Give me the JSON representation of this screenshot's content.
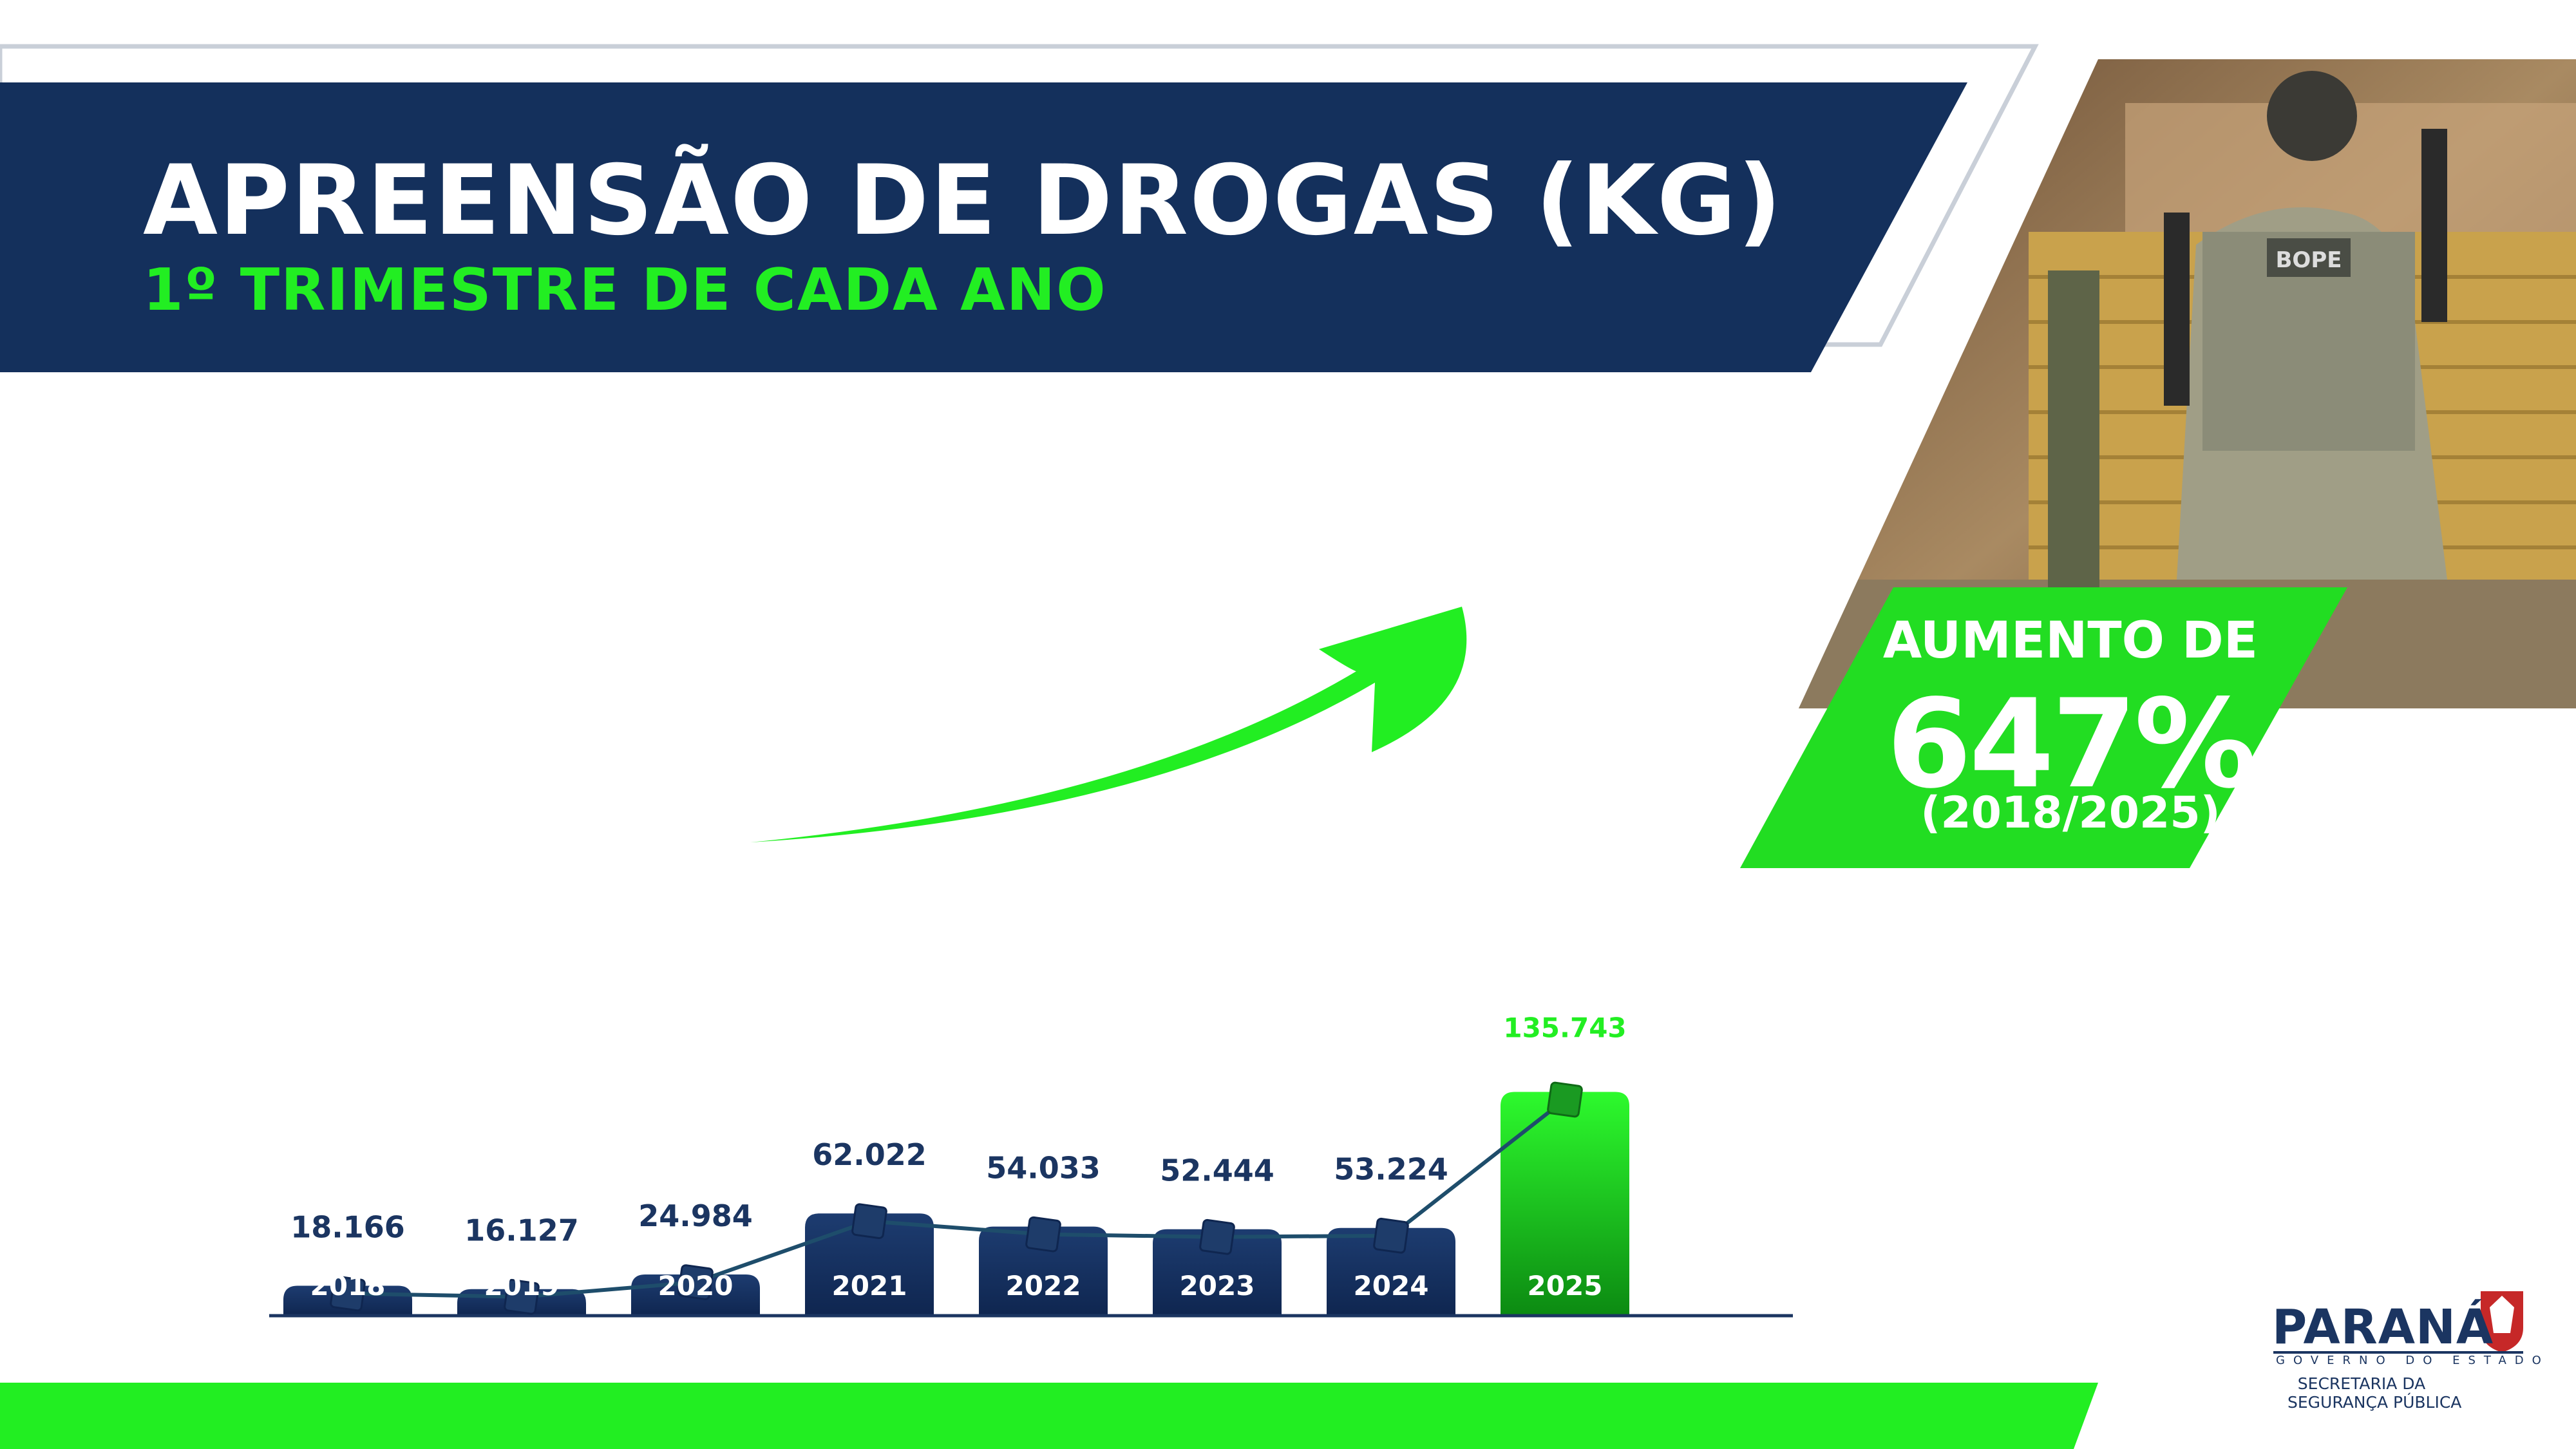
{
  "title": "APREENSÃO DE DROGAS (KG)",
  "subtitle": "1º TRIMESTRE DE CADA ANO",
  "badge": {
    "line1": "AUMENTO DE",
    "line2": "647%",
    "line3": "(2018/2025)"
  },
  "logo": {
    "name": "PARANÁ",
    "sub": "GOVERNO DO ESTADO",
    "dept_line1": "SECRETARIA DA",
    "dept_line2": "SEGURANÇA PÚBLICA"
  },
  "colors": {
    "navy": "#14305c",
    "green": "#22ee22",
    "white": "#ffffff"
  },
  "photo": {
    "icon": "police-officers-photo",
    "patch_text": "BOPE"
  },
  "chart_data": {
    "type": "bar",
    "categories": [
      "2018",
      "2019",
      "2020",
      "2021",
      "2022",
      "2023",
      "2024",
      "2025"
    ],
    "values": [
      18166,
      16127,
      24984,
      62022,
      54033,
      52444,
      53224,
      135743
    ],
    "value_labels": [
      "18.166",
      "16.127",
      "24.984",
      "62.022",
      "54.033",
      "52.444",
      "53.224",
      "135.743"
    ],
    "overlay": "line",
    "highlight_index": 7,
    "ylim": [
      0,
      140000
    ],
    "grid": false,
    "title": "APREENSÃO DE DROGAS (KG)",
    "subtitle": "1º TRIMESTRE DE CADA ANO"
  }
}
